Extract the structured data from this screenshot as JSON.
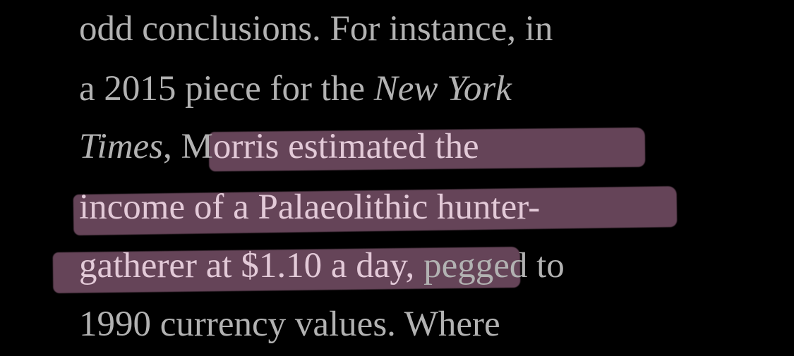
{
  "paragraph": {
    "line1": "odd conclusions. For instance, in",
    "line2_a": "a 2015 piece for the ",
    "line2_b": "New York",
    "line3_a": "Times",
    "line3_b": ", M",
    "line3_hl": "orris estimated the",
    "line4_hl": "income of a Palaeolithic hunter-",
    "line5_hl": "gatherer at $1.10 a day,",
    "line5_rest": " pegged to",
    "line6": "1990 currency values. Where"
  },
  "colors": {
    "background": "#000000",
    "text": "#b2b2b2",
    "highlight": "#8c5f7a"
  }
}
